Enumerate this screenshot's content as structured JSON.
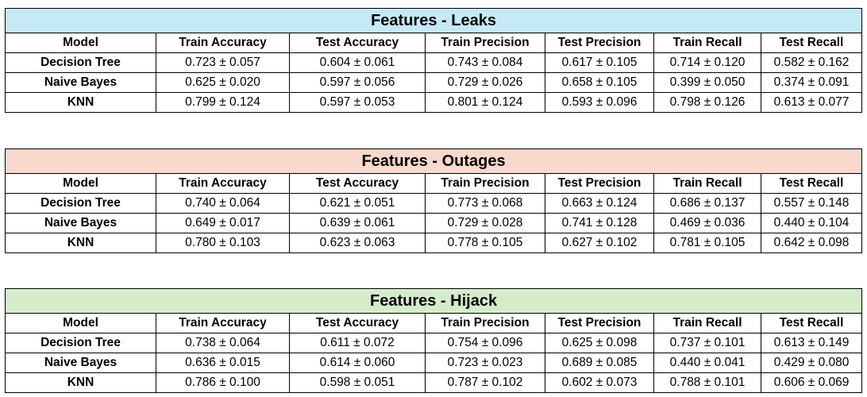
{
  "columns": [
    "Model",
    "Train Accuracy",
    "Test Accuracy",
    "Train Precision",
    "Test Precision",
    "Train Recall",
    "Test Recall"
  ],
  "tables": [
    {
      "title": "Features - Leaks",
      "header_color": "#c6e9f8",
      "rows": [
        [
          "Decision Tree",
          "0.723 ± 0.057",
          "0.604 ± 0.061",
          "0.743 ± 0.084",
          "0.617 ± 0.105",
          "0.714 ± 0.120",
          "0.582 ± 0.162"
        ],
        [
          "Naive Bayes",
          "0.625 ± 0.020",
          "0.597 ± 0.056",
          "0.729 ± 0.026",
          "0.658 ± 0.105",
          "0.399 ± 0.050",
          "0.374 ± 0.091"
        ],
        [
          "KNN",
          "0.799 ± 0.124",
          "0.597 ± 0.053",
          "0.801 ± 0.124",
          "0.593 ± 0.096",
          "0.798 ± 0.126",
          "0.613 ± 0.077"
        ]
      ]
    },
    {
      "title": "Features - Outages",
      "header_color": "#f9d9cd",
      "rows": [
        [
          "Decision Tree",
          "0.740 ± 0.064",
          "0.621 ± 0.051",
          "0.773 ± 0.068",
          "0.663 ± 0.124",
          "0.686 ± 0.137",
          "0.557 ± 0.148"
        ],
        [
          "Naive Bayes",
          "0.649 ± 0.017",
          "0.639 ± 0.061",
          "0.729 ± 0.028",
          "0.741 ± 0.128",
          "0.469 ± 0.036",
          "0.440 ± 0.104"
        ],
        [
          "KNN",
          "0.780 ± 0.103",
          "0.623 ± 0.063",
          "0.778 ± 0.105",
          "0.627 ± 0.102",
          "0.781 ± 0.105",
          "0.642 ± 0.098"
        ]
      ]
    },
    {
      "title": "Features - Hijack",
      "header_color": "#d5ecca",
      "rows": [
        [
          "Decision Tree",
          "0.738 ± 0.064",
          "0.611 ± 0.072",
          "0.754 ± 0.096",
          "0.625 ± 0.098",
          "0.737 ± 0.101",
          "0.613 ± 0.149"
        ],
        [
          "Naive Bayes",
          "0.636 ± 0.015",
          "0.614 ± 0.060",
          "0.723 ± 0.023",
          "0.689 ± 0.085",
          "0.440 ± 0.041",
          "0.429 ± 0.080"
        ],
        [
          "KNN",
          "0.786 ± 0.100",
          "0.598 ± 0.051",
          "0.787 ± 0.102",
          "0.602 ± 0.073",
          "0.788 ± 0.101",
          "0.606 ± 0.069"
        ]
      ]
    }
  ]
}
